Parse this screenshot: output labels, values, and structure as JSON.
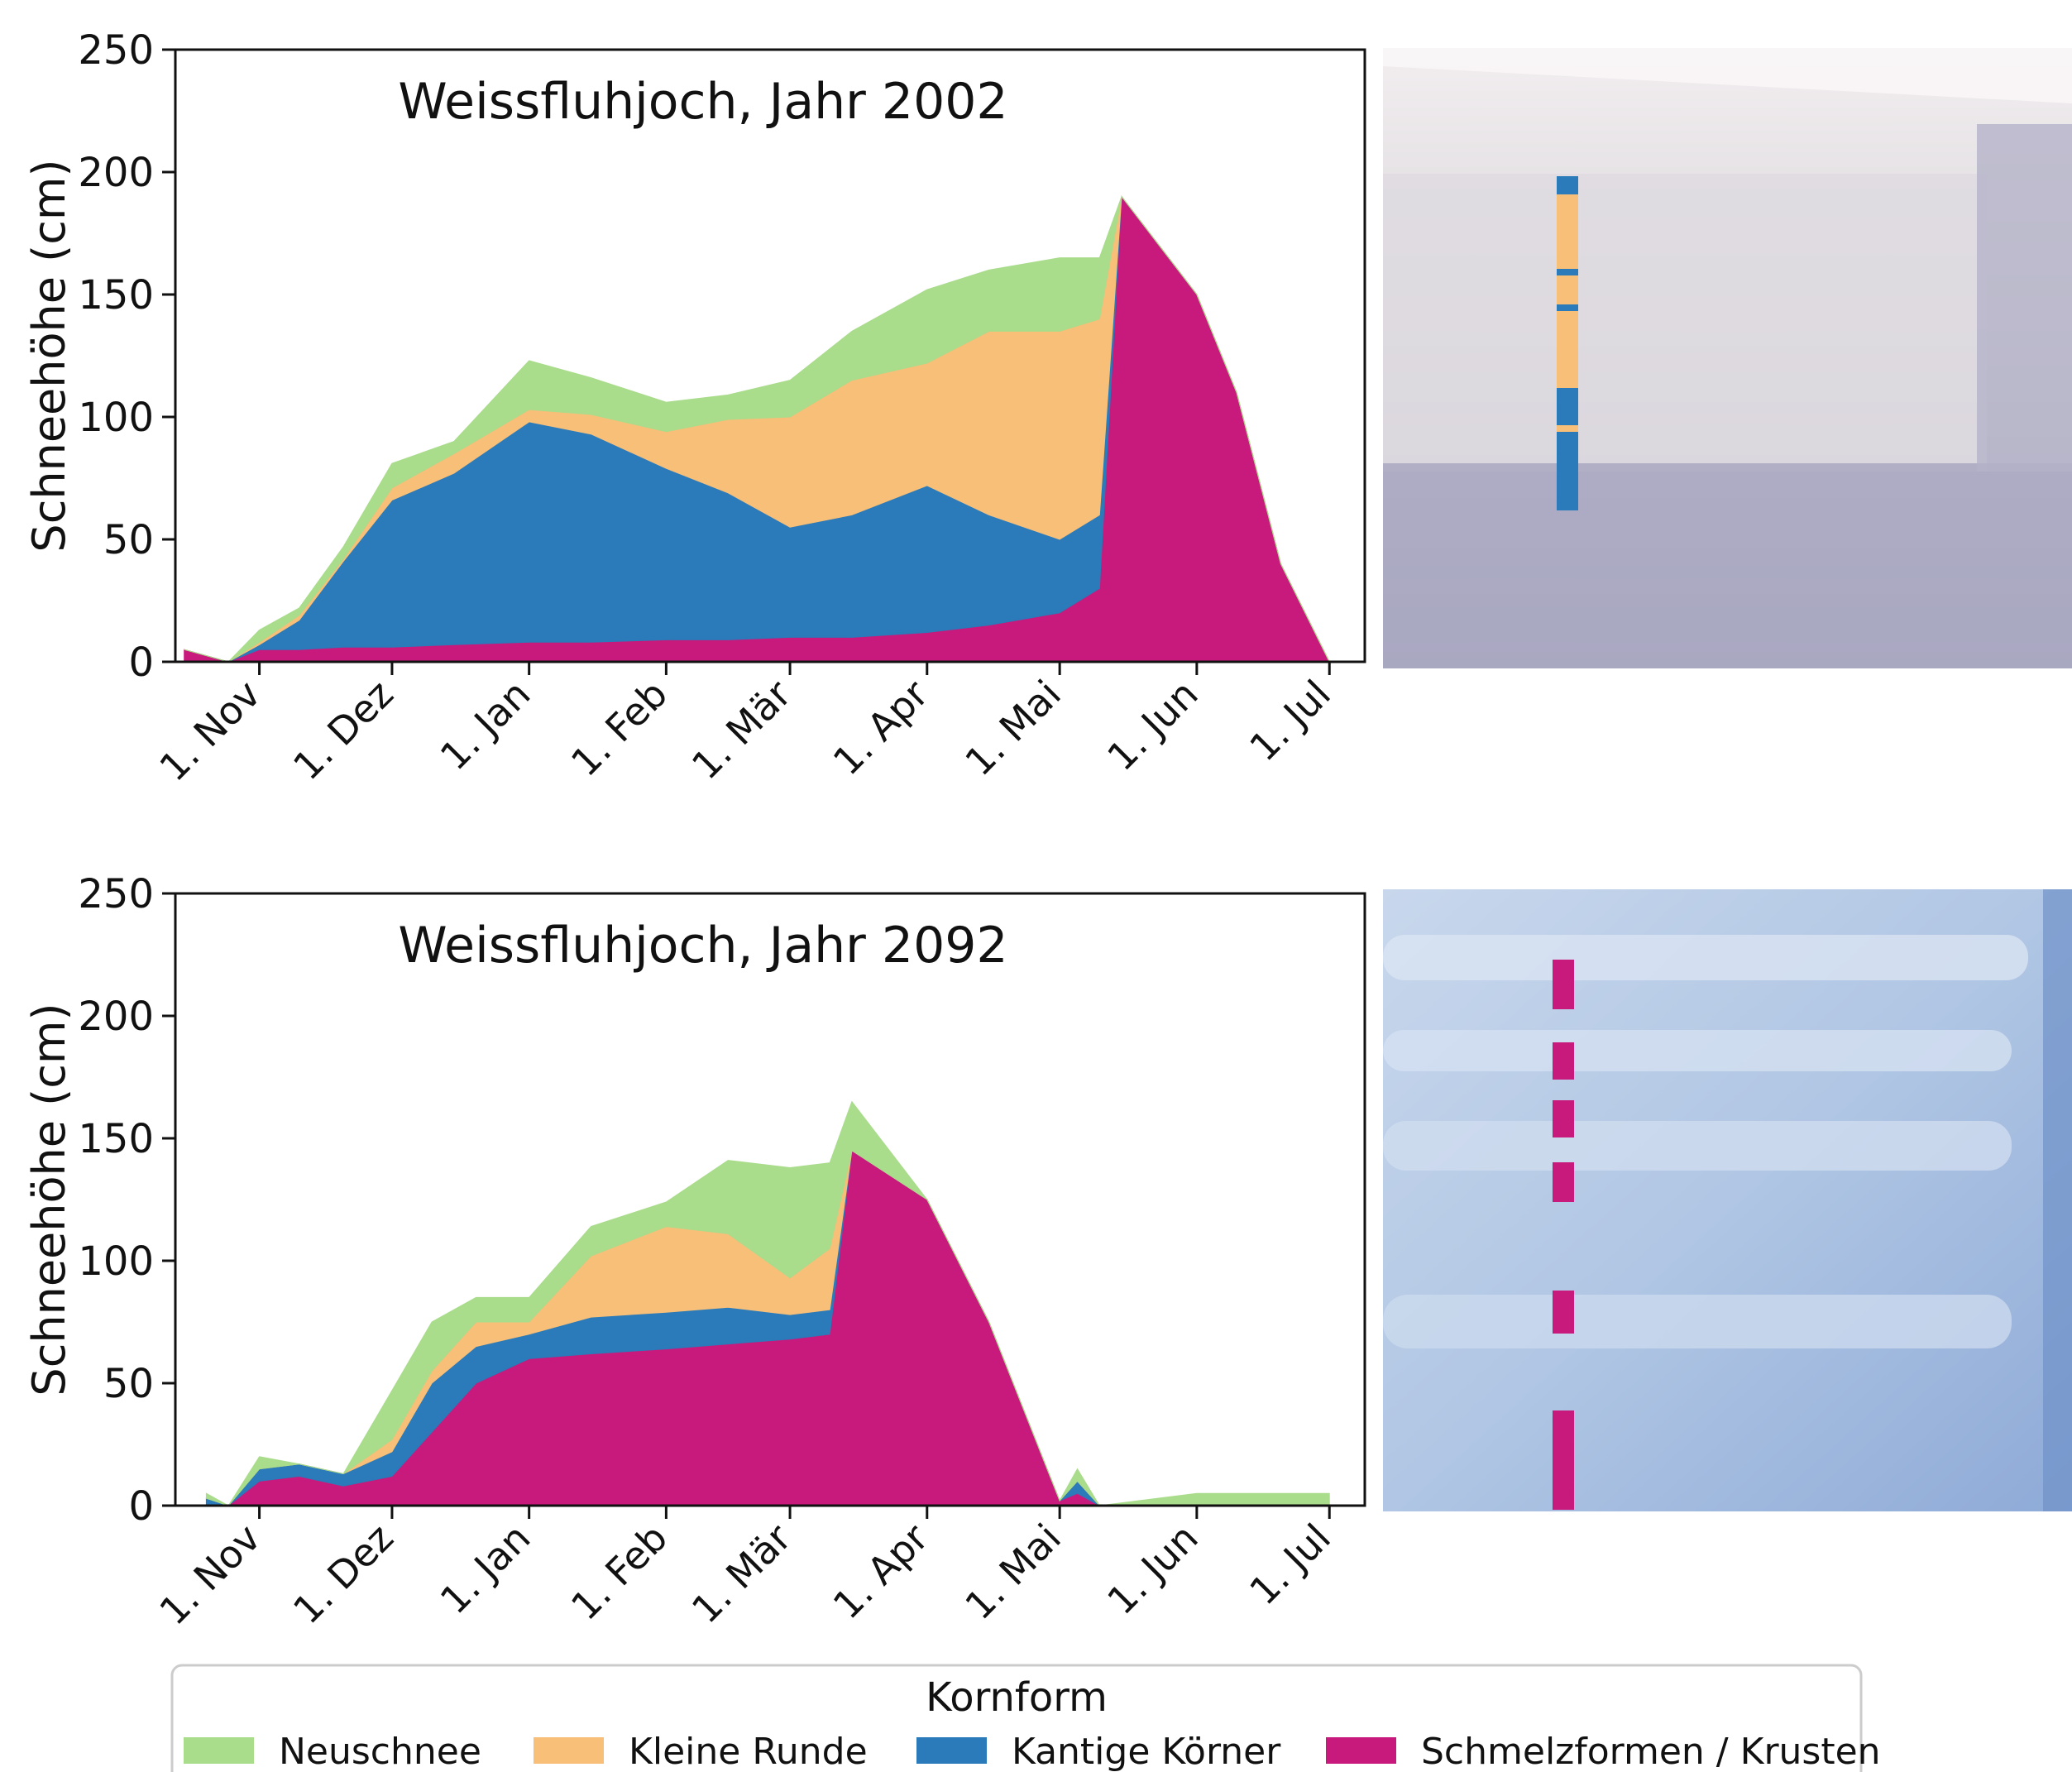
{
  "legend": {
    "title": "Kornform",
    "items": [
      {
        "label": "Neuschnee",
        "color": "#a9dc8b"
      },
      {
        "label": "Kleine Runde",
        "color": "#f7bf78"
      },
      {
        "label": "Kantige Körner",
        "color": "#2b7ab9"
      },
      {
        "label": "Schmelzformen / Krusten",
        "color": "#c81a7c"
      }
    ]
  },
  "chart_data": [
    {
      "type": "area",
      "title": "Weissfluhjoch, Jahr 2002",
      "ylabel": "Schneehöhe (cm)",
      "ylim": [
        0,
        250
      ],
      "yticks": [
        "0",
        "50",
        "100",
        "150",
        "200",
        "250"
      ],
      "xticks": [
        "1. Nov",
        "1. Dez",
        "1. Jan",
        "1. Feb",
        "1. Mär",
        "1. Apr",
        "1. Mai",
        "1. Jun",
        "1. Jul"
      ],
      "x": [
        "15. Okt",
        "25. Okt",
        "1. Nov",
        "10. Nov",
        "20. Nov",
        "1. Dez",
        "15. Dez",
        "1. Jan",
        "15. Jan",
        "1. Feb",
        "15. Feb",
        "1. Mär",
        "15. Mär",
        "1. Apr",
        "15. Apr",
        "1. Mai",
        "10. Mai",
        "15. Mai",
        "1. Jun",
        "10. Jun",
        "20. Jun",
        "1. Jul"
      ],
      "series": [
        {
          "name": "Schmelzformen / Krusten",
          "values": [
            5,
            0,
            5,
            5,
            6,
            6,
            7,
            8,
            8,
            9,
            9,
            10,
            10,
            12,
            15,
            20,
            30,
            190,
            150,
            110,
            40,
            0
          ]
        },
        {
          "name": "Kantige Körner",
          "values": [
            0,
            0,
            2,
            12,
            35,
            60,
            70,
            90,
            85,
            70,
            60,
            45,
            50,
            60,
            45,
            30,
            30,
            0,
            0,
            0,
            0,
            0
          ]
        },
        {
          "name": "Kleine Runde",
          "values": [
            0,
            0,
            1,
            2,
            1,
            5,
            8,
            5,
            8,
            15,
            30,
            45,
            55,
            50,
            75,
            85,
            80,
            0,
            0,
            0,
            0,
            0
          ]
        },
        {
          "name": "Neuschnee",
          "values": [
            0,
            0,
            5,
            3,
            5,
            10,
            5,
            20,
            15,
            12,
            10,
            15,
            20,
            30,
            25,
            30,
            25,
            0,
            0,
            0,
            0,
            0
          ]
        }
      ]
    },
    {
      "type": "area",
      "title": "Weissfluhjoch, Jahr 2092",
      "ylabel": "Schneehöhe (cm)",
      "ylim": [
        0,
        250
      ],
      "yticks": [
        "0",
        "50",
        "100",
        "150",
        "200",
        "250"
      ],
      "xticks": [
        "1. Nov",
        "1. Dez",
        "1. Jan",
        "1. Feb",
        "1. Mär",
        "1. Apr",
        "1. Mai",
        "1. Jun",
        "1. Jul"
      ],
      "x": [
        "20. Okt",
        "25. Okt",
        "1. Nov",
        "10. Nov",
        "20. Nov",
        "1. Dez",
        "10. Dez",
        "20. Dez",
        "1. Jan",
        "15. Jan",
        "1. Feb",
        "15. Feb",
        "1. Mär",
        "10. Mär",
        "15. Mär",
        "1. Apr",
        "15. Apr",
        "1. Mai",
        "5. Mai",
        "10. Mai",
        "1. Jun",
        "1. Jul"
      ],
      "series": [
        {
          "name": "Schmelzformen / Krusten",
          "values": [
            0,
            0,
            10,
            12,
            8,
            12,
            30,
            50,
            60,
            62,
            64,
            66,
            68,
            70,
            145,
            125,
            75,
            2,
            5,
            0,
            0,
            0
          ]
        },
        {
          "name": "Kantige Körner",
          "values": [
            3,
            0,
            5,
            5,
            5,
            10,
            20,
            15,
            10,
            15,
            15,
            15,
            10,
            10,
            0,
            0,
            0,
            0,
            5,
            0,
            0,
            0
          ]
        },
        {
          "name": "Kleine Runde",
          "values": [
            0,
            0,
            0,
            0,
            0,
            5,
            5,
            10,
            5,
            25,
            35,
            30,
            15,
            25,
            0,
            0,
            0,
            0,
            0,
            0,
            0,
            0
          ]
        },
        {
          "name": "Neuschnee",
          "values": [
            2,
            0,
            5,
            0,
            0,
            20,
            20,
            10,
            10,
            12,
            10,
            30,
            45,
            35,
            20,
            0,
            0,
            0,
            5,
            0,
            5,
            5
          ]
        }
      ]
    }
  ]
}
